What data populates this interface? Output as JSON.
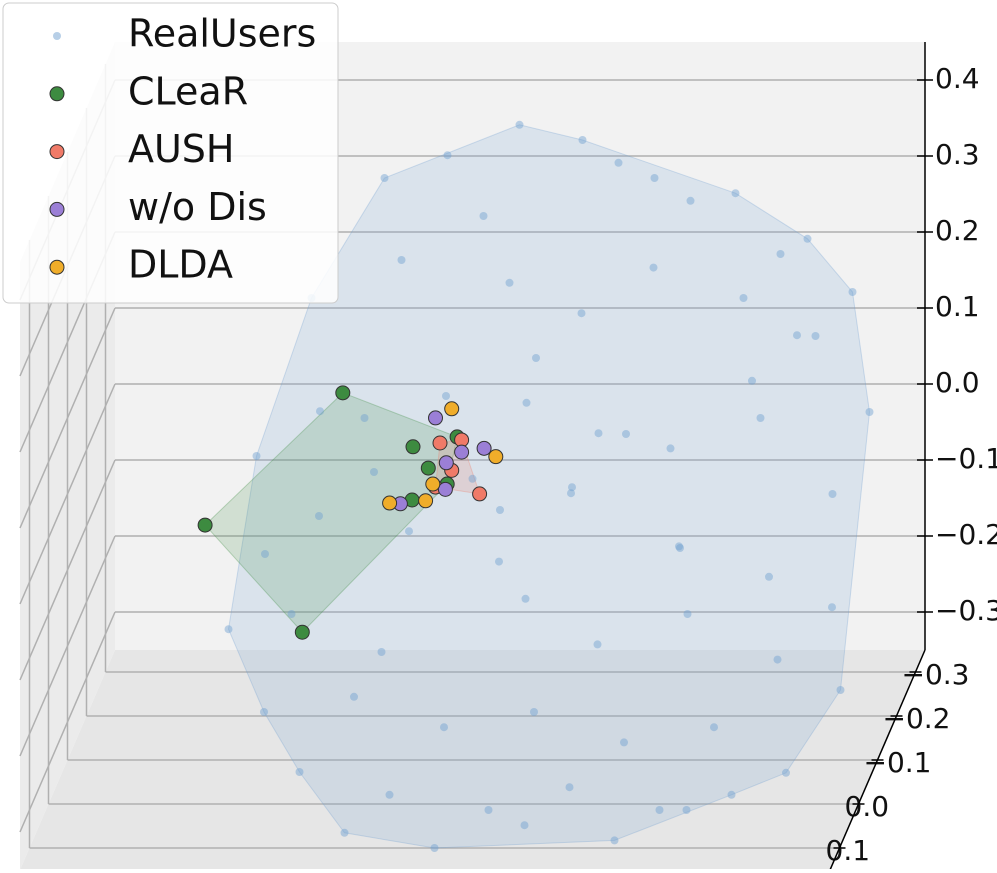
{
  "chart_data": {
    "type": "scatter3d",
    "xlim": [
      -0.45,
      0.45
    ],
    "ylim": [
      -0.35,
      0.15
    ],
    "zlim": [
      -0.35,
      0.45
    ],
    "yticks": [
      {
        "value": -0.3,
        "label": "−0.3"
      },
      {
        "value": -0.2,
        "label": "−0.2"
      },
      {
        "value": -0.1,
        "label": "−0.1"
      },
      {
        "value": 0,
        "label": "0.0"
      },
      0.1
    ],
    "zticks": [
      0.4,
      0.3,
      0.2,
      0.1,
      {
        "value": 0,
        "label": "0.0"
      },
      {
        "value": -0.1,
        "label": "−0.1"
      },
      {
        "value": -0.2,
        "label": "−0.2"
      },
      {
        "value": -0.3,
        "label": "−0.3"
      }
    ],
    "grid": true,
    "legend": "upper left",
    "series": [
      {
        "name": "RealUsers",
        "color": "#6f9fd0",
        "hull": true,
        "x": [
          0.01,
          -0.07,
          0.08,
          0.16,
          0.25,
          0.33,
          -0.14,
          -0.03,
          0.12,
          0.2,
          0.3,
          0.38,
          -0.2,
          -0.1,
          0.02,
          0.1,
          0.18,
          0.28,
          0.36,
          0.42,
          -0.24,
          -0.12,
          0.0,
          0.06,
          0.14,
          0.22,
          0.32,
          0.4,
          -0.22,
          -0.16,
          -0.06,
          0.04,
          0.12,
          0.24,
          0.34,
          0.41,
          -0.25,
          -0.18,
          -0.08,
          0.08,
          0.16,
          0.26,
          0.36,
          0.43,
          -0.2,
          -0.1,
          0.0,
          0.1,
          0.2,
          0.3,
          0.38,
          -0.15,
          -0.05,
          0.06,
          0.15,
          0.25,
          0.33,
          -0.1,
          0.0,
          0.1,
          0.2,
          0.28,
          -0.04,
          0.06,
          0.16,
          0.02,
          -0.12,
          0.22,
          0.3,
          -0.18,
          0.1,
          0.35
        ],
        "y": [
          -0.3,
          -0.3,
          -0.3,
          -0.3,
          -0.3,
          -0.3,
          -0.3,
          -0.3,
          -0.3,
          -0.3,
          -0.3,
          -0.3,
          -0.2,
          -0.2,
          -0.2,
          -0.2,
          -0.2,
          -0.2,
          -0.2,
          -0.2,
          -0.1,
          -0.1,
          -0.1,
          -0.1,
          -0.1,
          -0.1,
          -0.1,
          -0.1,
          -0.05,
          -0.05,
          -0.05,
          -0.05,
          -0.05,
          -0.05,
          -0.05,
          -0.05,
          0.0,
          0.0,
          0.0,
          0.0,
          0.0,
          0.0,
          0.0,
          0.0,
          0.05,
          0.05,
          0.05,
          0.05,
          0.05,
          0.05,
          0.05,
          0.1,
          0.1,
          0.1,
          0.1,
          0.1,
          0.1,
          0.1,
          0.1,
          0.1,
          0.1,
          0.1,
          -0.15,
          -0.15,
          -0.15,
          -0.15,
          -0.15,
          -0.15,
          -0.15,
          -0.15,
          -0.15,
          -0.15
        ],
        "z": [
          0.37,
          0.33,
          0.35,
          0.3,
          0.28,
          0.22,
          0.3,
          0.25,
          0.32,
          0.27,
          0.2,
          0.15,
          0.2,
          0.25,
          0.22,
          0.18,
          0.24,
          0.2,
          0.15,
          0.05,
          0.05,
          0.1,
          0.02,
          0.12,
          0.08,
          0.06,
          0.1,
          0.0,
          -0.05,
          0.0,
          -0.02,
          -0.06,
          0.03,
          -0.04,
          -0.08,
          -0.12,
          -0.12,
          -0.1,
          -0.15,
          -0.08,
          -0.14,
          -0.1,
          -0.16,
          -0.2,
          -0.2,
          -0.18,
          -0.22,
          -0.2,
          -0.24,
          -0.22,
          -0.28,
          -0.25,
          -0.28,
          -0.3,
          -0.27,
          -0.3,
          -0.28,
          -0.33,
          -0.35,
          -0.32,
          -0.34,
          -0.3,
          0.1,
          0.15,
          0.05,
          -0.05,
          0.0,
          -0.1,
          0.12,
          0.08,
          -0.02,
          0.18
        ]
      },
      {
        "name": "CLeaR",
        "color": "#3d8b40",
        "hull": true,
        "x": [
          -0.123,
          -0.276,
          -0.168,
          -0.045,
          0.004,
          -0.028,
          -0.046,
          -0.007
        ],
        "y": [
          0,
          0,
          0,
          0,
          0,
          0,
          0,
          0
        ],
        "z": [
          0.191,
          0.017,
          -0.124,
          0.12,
          0.133,
          0.092,
          0.05,
          0.071
        ]
      },
      {
        "name": "AUSH",
        "color": "#f07a68",
        "hull": true,
        "x": [
          0.029,
          -0.015,
          0.009,
          -0.002,
          -0.02
        ],
        "y": [
          0,
          0,
          0,
          0,
          0
        ],
        "z": [
          0.058,
          0.125,
          0.129,
          0.089,
          0.067
        ]
      },
      {
        "name": "w/o Dis",
        "color": "#9b7fd6",
        "hull": false,
        "x": [
          -0.02,
          0.034,
          0.009,
          -0.059,
          -0.008,
          -0.009
        ],
        "y": [
          0,
          0,
          0,
          0,
          0,
          0
        ],
        "z": [
          0.158,
          0.118,
          0.113,
          0.045,
          0.099,
          0.064
        ]
      },
      {
        "name": "DLDA",
        "color": "#f0ad2a",
        "hull": false,
        "x": [
          -0.002,
          0.047,
          -0.071,
          -0.031,
          -0.023
        ],
        "y": [
          0,
          0,
          0,
          0,
          0
        ],
        "z": [
          0.17,
          0.107,
          0.046,
          0.049,
          0.071
        ]
      }
    ]
  }
}
